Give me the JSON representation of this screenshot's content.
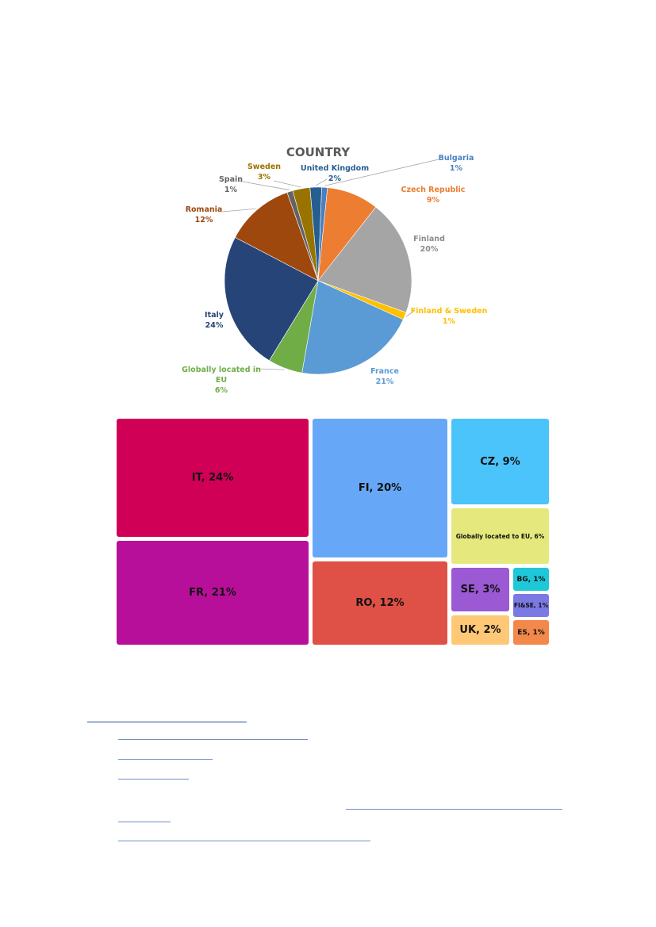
{
  "chart_data": [
    {
      "type": "pie",
      "title": "COUNTRY",
      "slices": [
        {
          "label": "Bulgaria",
          "pct_label": "1%",
          "value": 1,
          "color": "#4a7fc1"
        },
        {
          "label": "Czech Republic",
          "pct_label": "9%",
          "value": 9,
          "color": "#ed7d31"
        },
        {
          "label": "Finland",
          "pct_label": "20%",
          "value": 20,
          "color": "#a5a5a5"
        },
        {
          "label": "Finland & Sweden",
          "pct_label": "1%",
          "value": 1.3,
          "color": "#ffc000"
        },
        {
          "label": "France",
          "pct_label": "21%",
          "value": 21,
          "color": "#5b9bd5"
        },
        {
          "label": "Globally located in EU",
          "pct_label": "6%",
          "value": 6,
          "color": "#70ad47"
        },
        {
          "label": "Italy",
          "pct_label": "24%",
          "value": 24,
          "color": "#264478"
        },
        {
          "label": "Romania",
          "pct_label": "12%",
          "value": 12,
          "color": "#9e480e"
        },
        {
          "label": "Spain",
          "pct_label": "1%",
          "value": 1,
          "color": "#636363"
        },
        {
          "label": "Sweden",
          "pct_label": "3%",
          "value": 3,
          "color": "#997300"
        },
        {
          "label": "United Kingdom",
          "pct_label": "2%",
          "value": 2,
          "color": "#255e91"
        }
      ]
    },
    {
      "type": "treemap",
      "tiles": [
        {
          "label": "IT, 24%",
          "value": 24,
          "color": "#d10057"
        },
        {
          "label": "FR, 21%",
          "value": 21,
          "color": "#b80f9a"
        },
        {
          "label": "FI, 20%",
          "value": 20,
          "color": "#66a8f7"
        },
        {
          "label": "RO, 12%",
          "value": 12,
          "color": "#df5046"
        },
        {
          "label": "CZ, 9%",
          "value": 9,
          "color": "#4bc4fb"
        },
        {
          "label": "Globally located to EU, 6%",
          "value": 6,
          "color": "#e5e87c"
        },
        {
          "label": "SE, 3%",
          "value": 3,
          "color": "#9b59d3"
        },
        {
          "label": "UK, 2%",
          "value": 2,
          "color": "#ffc876"
        },
        {
          "label": "BG, 1%",
          "value": 1,
          "color": "#1ec8d8"
        },
        {
          "label": "FI&SE, 1%",
          "value": 1,
          "color": "#7b79e4"
        },
        {
          "label": "ES, 1%",
          "value": 1,
          "color": "#f2894a"
        }
      ]
    }
  ]
}
